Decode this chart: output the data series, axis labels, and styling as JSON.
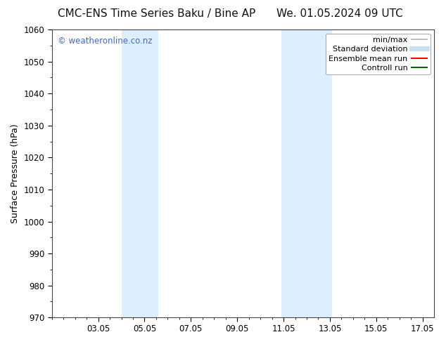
{
  "title_left": "CMC-ENS Time Series Baku / Bine AP",
  "title_right": "We. 01.05.2024 09 UTC",
  "ylabel": "Surface Pressure (hPa)",
  "ylim": [
    970,
    1060
  ],
  "yticks": [
    970,
    980,
    990,
    1000,
    1010,
    1020,
    1030,
    1040,
    1050,
    1060
  ],
  "xtick_labels": [
    "03.05",
    "05.05",
    "07.05",
    "09.05",
    "11.05",
    "13.05",
    "15.05",
    "17.05"
  ],
  "xtick_days": [
    3,
    5,
    7,
    9,
    11,
    13,
    15,
    17
  ],
  "xlim": [
    1.0,
    17.5
  ],
  "shaded_bands": [
    {
      "x_start_day": 4.0,
      "x_end_day": 5.6
    },
    {
      "x_start_day": 10.9,
      "x_end_day": 13.1
    }
  ],
  "shaded_color": "#ddeeff",
  "watermark_text": "© weatheronline.co.nz",
  "watermark_color": "#4466cc",
  "legend_items": [
    {
      "label": "min/max",
      "color": "#b0b0b0",
      "lw": 1.2,
      "ls": "-"
    },
    {
      "label": "Standard deviation",
      "color": "#c8dff0",
      "lw": 5,
      "ls": "-"
    },
    {
      "label": "Ensemble mean run",
      "color": "#ff0000",
      "lw": 1.5,
      "ls": "-"
    },
    {
      "label": "Controll run",
      "color": "#006600",
      "lw": 1.5,
      "ls": "-"
    }
  ],
  "bg_color": "#ffffff",
  "title_fontsize": 11,
  "label_fontsize": 9,
  "tick_fontsize": 8.5,
  "legend_fontsize": 8,
  "watermark_fontsize": 8.5
}
